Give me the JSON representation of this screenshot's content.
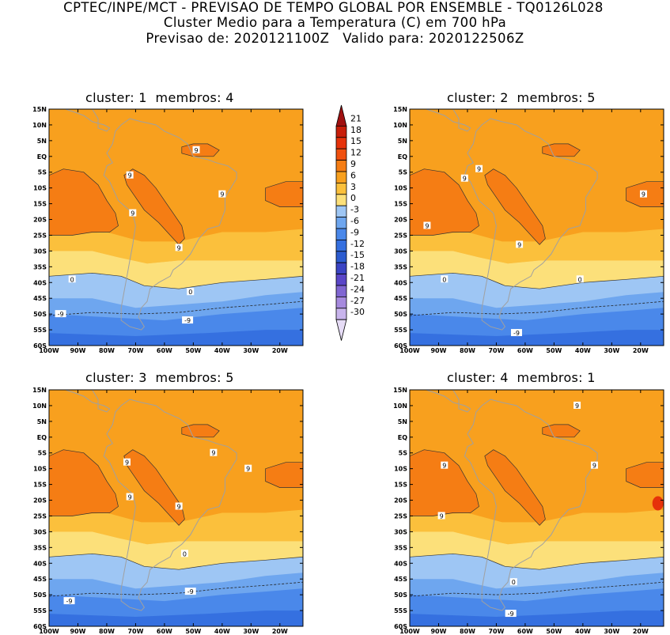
{
  "title": {
    "line1": "CPTEC/INPE/MCT - PREVISAO DE TEMPO GLOBAL POR ENSEMBLE - TQ0126L028",
    "line2": "Cluster Medio para a Temperatura (C) em 700 hPa",
    "line3": "Previsao de: 2020121100Z   Valido para: 2020122506Z"
  },
  "lat_labels": [
    "15N",
    "10N",
    "5N",
    "EQ",
    "5S",
    "10S",
    "15S",
    "20S",
    "25S",
    "30S",
    "35S",
    "40S",
    "45S",
    "50S",
    "55S",
    "60S"
  ],
  "lon_labels": [
    "100W",
    "90W",
    "80W",
    "70W",
    "60W",
    "50W",
    "40W",
    "30W",
    "20W"
  ],
  "colorbar": {
    "labels": [
      "21",
      "18",
      "15",
      "12",
      "9",
      "6",
      "3",
      "0",
      "-3",
      "-6",
      "-9",
      "-12",
      "-15",
      "-18",
      "-21",
      "-24",
      "-27",
      "-30"
    ],
    "colors": [
      "#a01010",
      "#c81e0a",
      "#e6320a",
      "#f0500f",
      "#f57d14",
      "#f8a01e",
      "#fbc03c",
      "#fce07a",
      "#9ec6f4",
      "#6ea6ef",
      "#4a88ea",
      "#3570e0",
      "#2c5cd0",
      "#3a44c4",
      "#5a46c8",
      "#8066d2",
      "#a68ade",
      "#c8b4ec",
      "#e6dcf6"
    ]
  },
  "panels": [
    {
      "label": "cluster: 1  membros: 4",
      "contours": [
        {
          "text": "9",
          "lon": -49,
          "lat": 2
        },
        {
          "text": "9",
          "lon": -72,
          "lat": -6
        },
        {
          "text": "9",
          "lon": -71,
          "lat": -18
        },
        {
          "text": "9",
          "lon": -55,
          "lat": -29
        },
        {
          "text": "9",
          "lon": -40,
          "lat": -12
        },
        {
          "text": "0",
          "lon": -92,
          "lat": -39
        },
        {
          "text": "0",
          "lon": -51,
          "lat": -43
        },
        {
          "text": "-9",
          "lon": -96,
          "lat": -50
        },
        {
          "text": "-9",
          "lon": -52,
          "lat": -52
        }
      ]
    },
    {
      "label": "cluster: 2  membros: 5",
      "contours": [
        {
          "text": "9",
          "lon": -76,
          "lat": -4
        },
        {
          "text": "9",
          "lon": -81,
          "lat": -7
        },
        {
          "text": "9",
          "lon": -62,
          "lat": -28
        },
        {
          "text": "9",
          "lon": -94,
          "lat": -22
        },
        {
          "text": "9",
          "lon": -19,
          "lat": -12
        },
        {
          "text": "0",
          "lon": -88,
          "lat": -39
        },
        {
          "text": "0",
          "lon": -41,
          "lat": -39
        },
        {
          "text": "-9",
          "lon": -63,
          "lat": -56
        }
      ]
    },
    {
      "label": "cluster: 3  membros: 5",
      "contours": [
        {
          "text": "9",
          "lon": -43,
          "lat": -5
        },
        {
          "text": "9",
          "lon": -73,
          "lat": -8
        },
        {
          "text": "9",
          "lon": -72,
          "lat": -19
        },
        {
          "text": "9",
          "lon": -55,
          "lat": -22
        },
        {
          "text": "9",
          "lon": -31,
          "lat": -10
        },
        {
          "text": "0",
          "lon": -53,
          "lat": -37
        },
        {
          "text": "-9",
          "lon": -93,
          "lat": -52
        },
        {
          "text": "-9",
          "lon": -51,
          "lat": -49
        }
      ]
    },
    {
      "label": "cluster: 4  membros: 1",
      "contours": [
        {
          "text": "9",
          "lon": -42,
          "lat": 10
        },
        {
          "text": "9",
          "lon": -88,
          "lat": -9
        },
        {
          "text": "9",
          "lon": -36,
          "lat": -9
        },
        {
          "text": "9",
          "lon": -89,
          "lat": -25
        },
        {
          "text": "0",
          "lon": -64,
          "lat": -46
        },
        {
          "text": "-9",
          "lon": -65,
          "lat": -56
        }
      ]
    }
  ]
}
